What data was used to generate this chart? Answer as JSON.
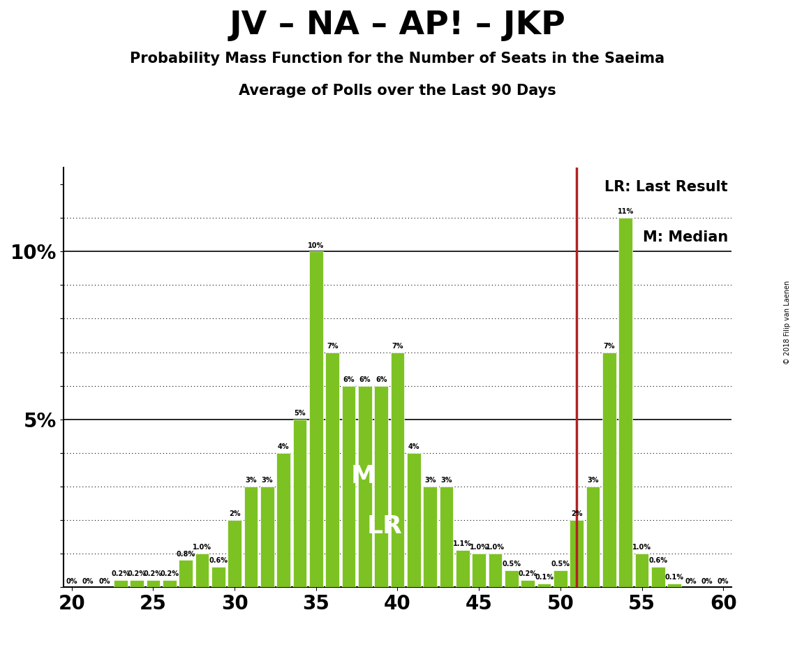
{
  "title": "JV – NA – AP! – JKP",
  "subtitle1": "Probability Mass Function for the Number of Seats in the Saeima",
  "subtitle2": "Average of Polls over the Last 90 Days",
  "copyright": "© 2018 Filip van Laenen",
  "lr_label": "LR: Last Result",
  "m_label": "M: Median",
  "lr_value": 51,
  "median_value": 38,
  "bar_color": "#7dc223",
  "lr_line_color": "#b22222",
  "seats": [
    20,
    21,
    22,
    23,
    24,
    25,
    26,
    27,
    28,
    29,
    30,
    31,
    32,
    33,
    34,
    35,
    36,
    37,
    38,
    39,
    40,
    41,
    42,
    43,
    44,
    45,
    46,
    47,
    48,
    49,
    50,
    51,
    52,
    53,
    54,
    55,
    56,
    57,
    58,
    59,
    60
  ],
  "probabilities": [
    0.0,
    0.0,
    0.0,
    0.2,
    0.2,
    0.2,
    0.2,
    0.8,
    1.0,
    0.6,
    2.0,
    3.0,
    3.0,
    4.0,
    5.0,
    10.0,
    7.0,
    6.0,
    6.0,
    6.0,
    7.0,
    4.0,
    3.0,
    3.0,
    1.1,
    1.0,
    1.0,
    0.5,
    0.2,
    0.1,
    0.5,
    2.0,
    3.0,
    7.0,
    11.0,
    1.0,
    0.6,
    0.1,
    0.0,
    0.0,
    0.0
  ],
  "bar_labels": [
    "0%",
    "0%",
    "0%",
    "0.2%",
    "0.2%",
    "0.2%",
    "0.2%",
    "0.8%",
    "1.0%",
    "0.6%",
    "2%",
    "3%",
    "3%",
    "4%",
    "5%",
    "10%",
    "7%",
    "6%",
    "6%",
    "6%",
    "7%",
    "4%",
    "3%",
    "3%",
    "1.1%",
    "1.0%",
    "1.0%",
    "0.5%",
    "0.2%",
    "0.1%",
    "0.5%",
    "2%",
    "3%",
    "7%",
    "11%",
    "1.0%",
    "0.6%",
    "0.1%",
    "0%",
    "0%",
    "0%"
  ],
  "xlim": [
    19.5,
    60.5
  ],
  "ylim": [
    0,
    12.5
  ],
  "bg_color": "#ffffff",
  "label_font_size": 7,
  "bar_width": 0.85,
  "title_fontsize": 34,
  "subtitle_fontsize": 15,
  "tick_fontsize": 20
}
